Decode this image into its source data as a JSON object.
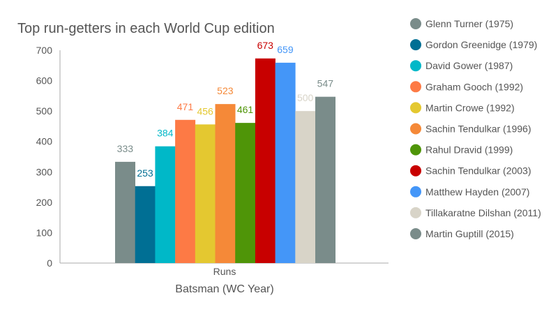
{
  "chart_data": {
    "type": "bar",
    "title": "Top run-getters in each World Cup edition",
    "xlabel": "Batsman (WC Year)",
    "ylabel": "",
    "categories": [
      "Runs"
    ],
    "ylim": [
      0,
      700
    ],
    "yticks": [
      0,
      100,
      200,
      300,
      400,
      500,
      600,
      700
    ],
    "grid": false,
    "legend_position": "right",
    "series": [
      {
        "name": "Glenn Turner (1975)",
        "values": [
          333
        ],
        "color": "#7a8c8a"
      },
      {
        "name": "Gordon Greenidge (1979)",
        "values": [
          253
        ],
        "color": "#006f94"
      },
      {
        "name": "David Gower (1987)",
        "values": [
          384
        ],
        "color": "#00b8c8"
      },
      {
        "name": "Graham Gooch (1992)",
        "values": [
          471
        ],
        "color": "#fd7a45"
      },
      {
        "name": "Martin Crowe (1992)",
        "values": [
          456
        ],
        "color": "#e4c830"
      },
      {
        "name": "Sachin Tendulkar (1996)",
        "values": [
          523
        ],
        "color": "#f58938"
      },
      {
        "name": "Rahul Dravid (1999)",
        "values": [
          461
        ],
        "color": "#4f9508"
      },
      {
        "name": "Sachin Tendulkar (2003)",
        "values": [
          673
        ],
        "color": "#c80000"
      },
      {
        "name": "Matthew Hayden (2007)",
        "values": [
          659
        ],
        "color": "#4496f8"
      },
      {
        "name": "Tillakaratne Dilshan (2011)",
        "values": [
          500
        ],
        "color": "#d8d4c8"
      },
      {
        "name": "Martin Guptill (2015)",
        "values": [
          547
        ],
        "color": "#7a8c8a"
      }
    ]
  }
}
